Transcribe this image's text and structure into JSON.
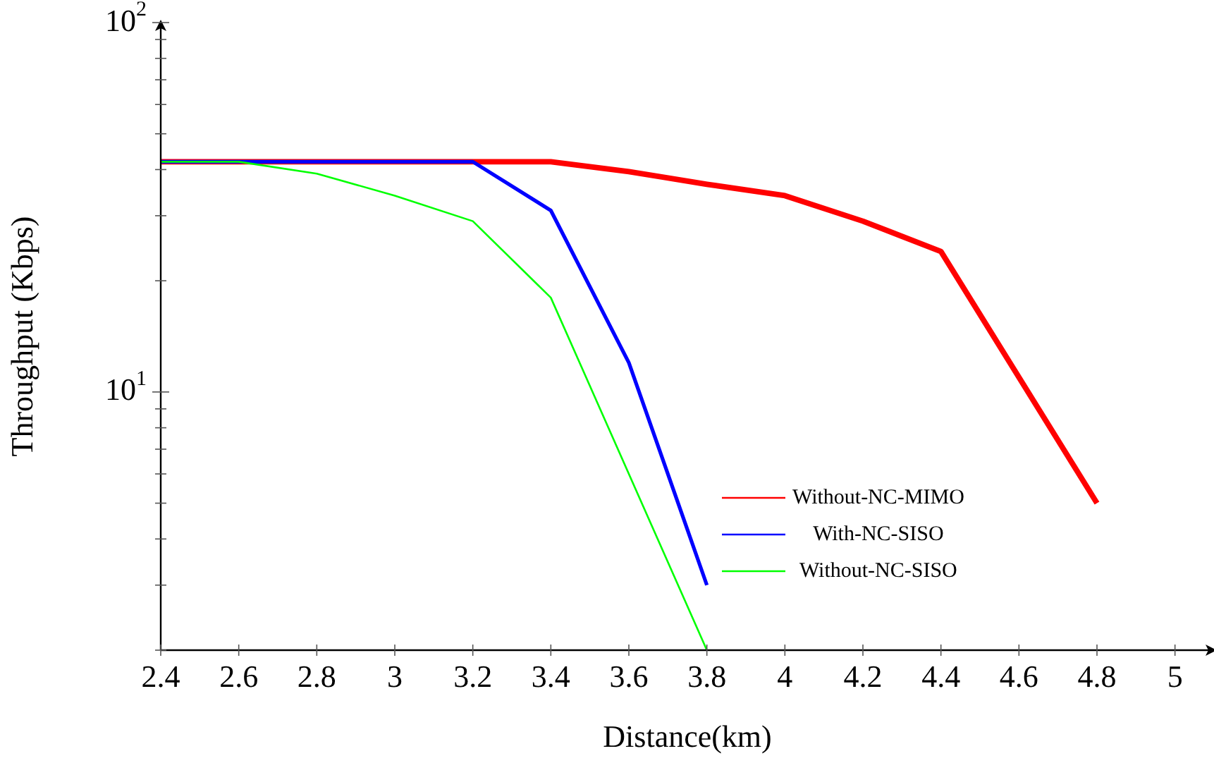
{
  "chart_data": {
    "type": "line",
    "xlabel": "Distance(km)",
    "ylabel": "Throughput (Kbps)",
    "x": [
      2.4,
      2.6,
      2.8,
      3.0,
      3.2,
      3.4,
      3.6,
      3.8,
      4.0,
      4.2,
      4.4,
      4.8
    ],
    "series": [
      {
        "name": "Without-NC-MIMO",
        "color": "#ff0000",
        "values": [
          42,
          42,
          42,
          42,
          42,
          42,
          39.5,
          36.5,
          34,
          29,
          24,
          5
        ]
      },
      {
        "name": "With-NC-SISO",
        "color": "#0000ff",
        "x": [
          2.4,
          2.6,
          2.8,
          3.0,
          3.2,
          3.4,
          3.6,
          3.8
        ],
        "values": [
          42,
          42,
          42,
          42,
          42,
          31,
          12,
          3
        ]
      },
      {
        "name": "Without-NC-SISO",
        "color": "#00ff00",
        "x": [
          2.4,
          2.6,
          2.8,
          3.0,
          3.2,
          3.4,
          3.8
        ],
        "values": [
          42,
          42,
          39,
          34,
          29,
          18,
          2
        ]
      }
    ],
    "log": "y",
    "xlim": [
      2.4,
      5.1
    ],
    "xticks": [
      2.4,
      2.6,
      2.8,
      3,
      3.2,
      3.4,
      3.6,
      3.8,
      4,
      4.2,
      4.4,
      4.6,
      4.8,
      5
    ],
    "ylim": [
      2,
      100
    ],
    "yticks": [
      {
        "value": 2,
        "label": null
      },
      {
        "value": 3,
        "label": null
      },
      {
        "value": 4,
        "label": null
      },
      {
        "value": 5,
        "label": null
      },
      {
        "value": 6,
        "label": null
      },
      {
        "value": 7,
        "label": null
      },
      {
        "value": 8,
        "label": null
      },
      {
        "value": 9,
        "label": null
      },
      {
        "value": 10,
        "label": "10$^{1}$"
      },
      {
        "value": 20,
        "label": null
      },
      {
        "value": 30,
        "label": null
      },
      {
        "value": 40,
        "label": null
      },
      {
        "value": 50,
        "label": null
      },
      {
        "value": 60,
        "label": null
      },
      {
        "value": 70,
        "label": null
      },
      {
        "value": 80,
        "label": null
      },
      {
        "value": 90,
        "label": null
      },
      {
        "value": 100,
        "label": "10$^{2}$"
      }
    ],
    "grid": false,
    "legend": "bottom right",
    "marker": "none",
    "line_style": "solid"
  }
}
